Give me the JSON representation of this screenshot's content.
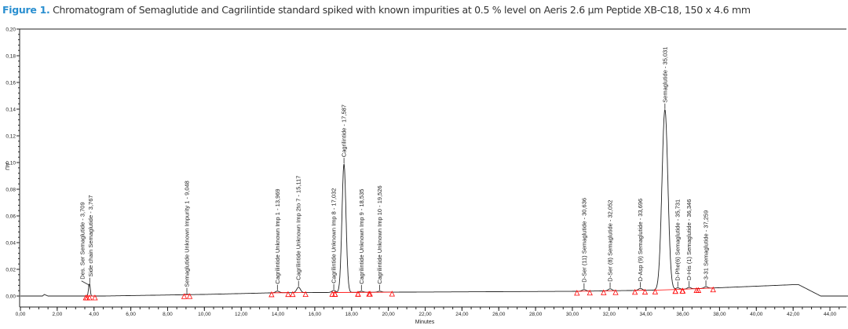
{
  "caption": {
    "label": "Figure 1.",
    "text": "Chromatogram of Semaglutide and Cagrilintide standard spiked with known impurities at 0.5 % level on Aeris 2.6 µm Peptide XB-C18, 150 x 4.6 mm"
  },
  "chart_data": {
    "type": "line",
    "title": "",
    "xlabel": "Minutes",
    "ylabel": "AU",
    "xlim": [
      0,
      45
    ],
    "ylim": [
      -0.008,
      0.2
    ],
    "x_ticks": [
      "0,00",
      "2,00",
      "4,00",
      "6,00",
      "8,00",
      "10,00",
      "12,00",
      "14,00",
      "16,00",
      "18,00",
      "20,00",
      "22,00",
      "24,00",
      "26,00",
      "28,00",
      "30,00",
      "32,00",
      "34,00",
      "36,00",
      "38,00",
      "40,00",
      "42,00",
      "44,00"
    ],
    "y_ticks": [
      "0,00",
      "0,02",
      "0,04",
      "0,06",
      "0,08",
      "0,10",
      "0,12",
      "0,14",
      "0,16",
      "0,18",
      "0,20"
    ],
    "line_color": "#222222",
    "marker_color": "#ff0000",
    "baseline": [
      [
        0,
        0
      ],
      [
        1.2,
        0
      ],
      [
        1.3,
        0.0012
      ],
      [
        1.5,
        0
      ],
      [
        4.5,
        0
      ],
      [
        10,
        0.0012
      ],
      [
        14,
        0.0025
      ],
      [
        30,
        0.0035
      ],
      [
        35,
        0.0045
      ],
      [
        42,
        0.0085
      ],
      [
        42.3,
        0.0085
      ],
      [
        43.5,
        0
      ],
      [
        45,
        0
      ]
    ],
    "peaks": [
      {
        "label": "Des. Ser Semaglutide - 3,709",
        "rt": 3.709,
        "height": 0.004,
        "start": 3.55,
        "end": 3.75
      },
      {
        "label": "Side chain Semaglutide - 3,767",
        "rt": 3.767,
        "height": 0.008,
        "start": 3.62,
        "end": 4.05
      },
      {
        "label": "Semaglutide Unknown Impurity 1 - 9,048",
        "rt": 9.048,
        "height": 0.0004,
        "start": 8.9,
        "end": 9.2
      },
      {
        "label": "Cagrilintide Unknown Imp 1 - 13,969",
        "rt": 13.969,
        "height": 0.0012,
        "start": 13.65,
        "end": 14.55
      },
      {
        "label": "Cagrilintide Unknown Imp 2to 7 - 15,117",
        "rt": 15.117,
        "height": 0.004,
        "start": 14.8,
        "end": 15.5
      },
      {
        "label": "Cagrilintide Unknown Imp 8 - 17,032",
        "rt": 17.032,
        "height": 0.0015,
        "start": 16.95,
        "end": 17.1
      },
      {
        "label": "Cagrilintide - 17,587",
        "rt": 17.587,
        "height": 0.096,
        "start": 17.1,
        "end": 18.35
      },
      {
        "label": "Cagrilintide Unknown Imp 9 - 18,535",
        "rt": 18.535,
        "height": 0.0008,
        "start": 18.35,
        "end": 18.95
      },
      {
        "label": "Cagrilintide Unknown Imp 10 - 19,526",
        "rt": 19.526,
        "height": 0.0008,
        "start": 19.0,
        "end": 20.2
      },
      {
        "label": "D-Ser (11) Semaglutide - 30,636",
        "rt": 30.636,
        "height": 0.0012,
        "start": 30.25,
        "end": 30.95
      },
      {
        "label": "D-Ser (8) Semaglutide - 32,052",
        "rt": 32.052,
        "height": 0.0015,
        "start": 31.7,
        "end": 32.35
      },
      {
        "label": "D-Asp (9) Semaglutide - 33,696",
        "rt": 33.696,
        "height": 0.0015,
        "start": 33.4,
        "end": 33.95
      },
      {
        "label": "Semaglutide - 35,031",
        "rt": 35.031,
        "height": 0.135,
        "start": 34.5,
        "end": 35.6
      },
      {
        "label": "D-Phe(6) Semaglutide - 35,731",
        "rt": 35.731,
        "height": 0.0012,
        "start": 35.6,
        "end": 35.98
      },
      {
        "label": "D-His (1) Semaglutide - 36,346",
        "rt": 36.346,
        "height": 0.0012,
        "start": 36.0,
        "end": 36.75
      },
      {
        "label": "3-31 Semaglutide - 37,259",
        "rt": 37.259,
        "height": 0.0012,
        "start": 36.85,
        "end": 37.65
      }
    ]
  }
}
